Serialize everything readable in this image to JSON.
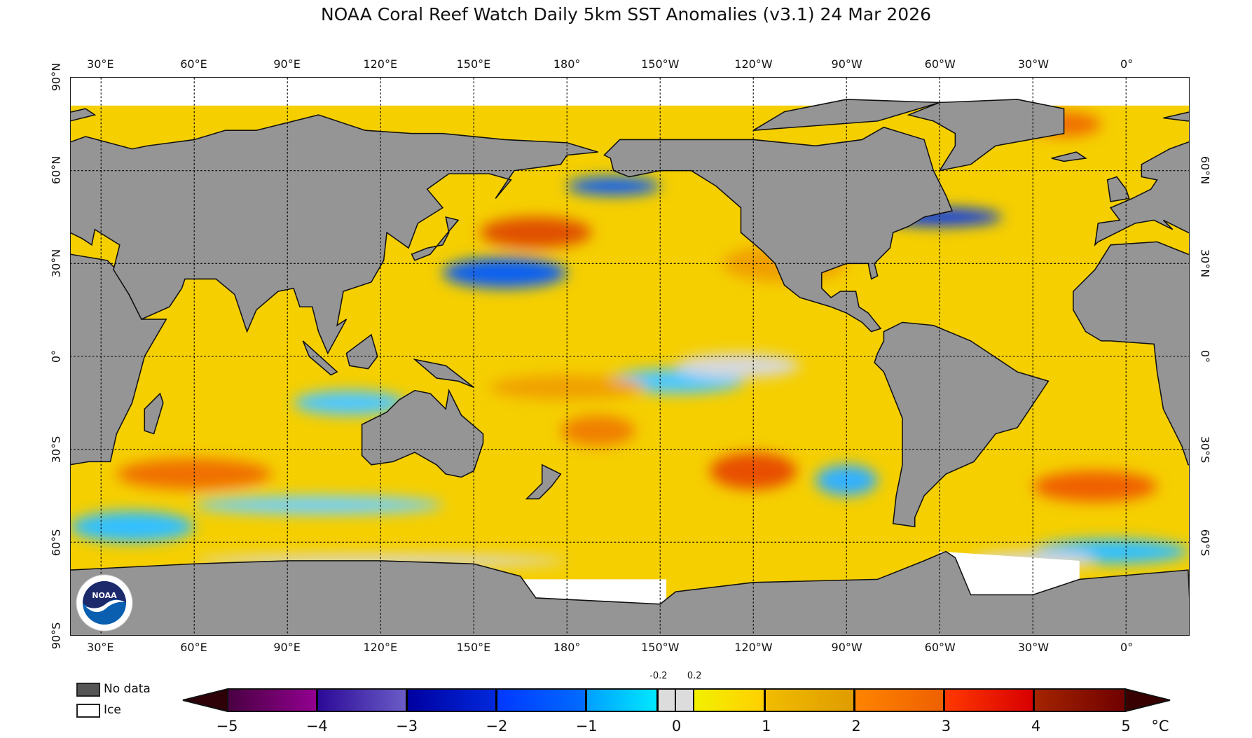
{
  "title": "NOAA Coral Reef Watch Daily 5km SST Anomalies  (v3.1)   24 Mar 2026",
  "chart_data": {
    "type": "heatmap",
    "title": "NOAA Coral Reef Watch Daily 5km SST Anomalies  (v3.1)   24 Mar 2026",
    "projection": "equirectangular",
    "lon_range": [
      20.25,
      380.25
    ],
    "lat_range": [
      -90,
      90
    ],
    "lon_ticks_top": [
      "30°E",
      "60°E",
      "90°E",
      "120°E",
      "150°E",
      "180°",
      "150°W",
      "120°W",
      "90°W",
      "60°W",
      "30°W",
      "0°"
    ],
    "lon_ticks_bottom": [
      "30°E",
      "60°E",
      "90°E",
      "120°E",
      "150°E",
      "180°",
      "150°W",
      "120°W",
      "90°W",
      "60°W",
      "30°W",
      "0°"
    ],
    "lon_tick_values": [
      30,
      60,
      90,
      120,
      150,
      180,
      210,
      240,
      270,
      300,
      330,
      360
    ],
    "lat_ticks_left": [
      "90°N",
      "60°N",
      "30°N",
      "0°",
      "30°S",
      "60°S",
      "90°S"
    ],
    "lat_tick_values_left": [
      90,
      60,
      30,
      0,
      -30,
      -60,
      -90
    ],
    "lat_ticks_right": [
      "60°N",
      "30°N",
      "0°",
      "30°S",
      "60°S"
    ],
    "lat_tick_values_right": [
      60,
      30,
      0,
      -30,
      -60
    ],
    "grid": true,
    "colorbar": {
      "ticks": [
        "−5",
        "−4",
        "−3",
        "−2",
        "−1",
        "0",
        "1",
        "2",
        "3",
        "4",
        "5"
      ],
      "tick_values": [
        -5,
        -4,
        -3,
        -2,
        -1,
        0,
        1,
        2,
        3,
        4,
        5
      ],
      "extra_ticks": [
        "-0.2",
        "0.2"
      ],
      "extra_tick_values": [
        -0.2,
        0.2
      ],
      "unit": "°C",
      "range": [
        -5,
        5
      ],
      "segments": [
        {
          "from": -5,
          "to": -4,
          "colors": [
            "#4a0042",
            "#920090"
          ]
        },
        {
          "from": -4,
          "to": -3,
          "colors": [
            "#2c0a98",
            "#6a5cc6"
          ]
        },
        {
          "from": -3,
          "to": -2,
          "colors": [
            "#0000a0",
            "#0028dc"
          ]
        },
        {
          "from": -2,
          "to": -1,
          "colors": [
            "#0038ff",
            "#006cff"
          ]
        },
        {
          "from": -1,
          "to": -0.2,
          "colors": [
            "#00a0ff",
            "#00e8ff"
          ]
        },
        {
          "from": -0.2,
          "to": 0,
          "colors": [
            "#dcdcdc",
            "#dcdcdc"
          ]
        },
        {
          "from": 0,
          "to": 0.2,
          "colors": [
            "#dcdcdc",
            "#dcdcdc"
          ]
        },
        {
          "from": 0.2,
          "to": 1,
          "colors": [
            "#f2f000",
            "#ffd000"
          ]
        },
        {
          "from": 1,
          "to": 2,
          "colors": [
            "#f0bc00",
            "#e09c00"
          ]
        },
        {
          "from": 2,
          "to": 3,
          "colors": [
            "#ff8400",
            "#ee6000"
          ]
        },
        {
          "from": 3,
          "to": 4,
          "colors": [
            "#ff3800",
            "#d80000"
          ]
        },
        {
          "from": 4,
          "to": 5,
          "colors": [
            "#a42400",
            "#700000"
          ]
        }
      ],
      "under_color": "#2e0008",
      "over_color": "#380000"
    }
  },
  "legend": {
    "no_data": {
      "label": "No data",
      "color": "#555555"
    },
    "ice": {
      "label": "Ice",
      "color": "#ffffff"
    }
  },
  "colors": {
    "land": "#959595",
    "ocean_base": "#f5cf00",
    "ice": "#ffffff"
  },
  "logo_text": "NOAA"
}
